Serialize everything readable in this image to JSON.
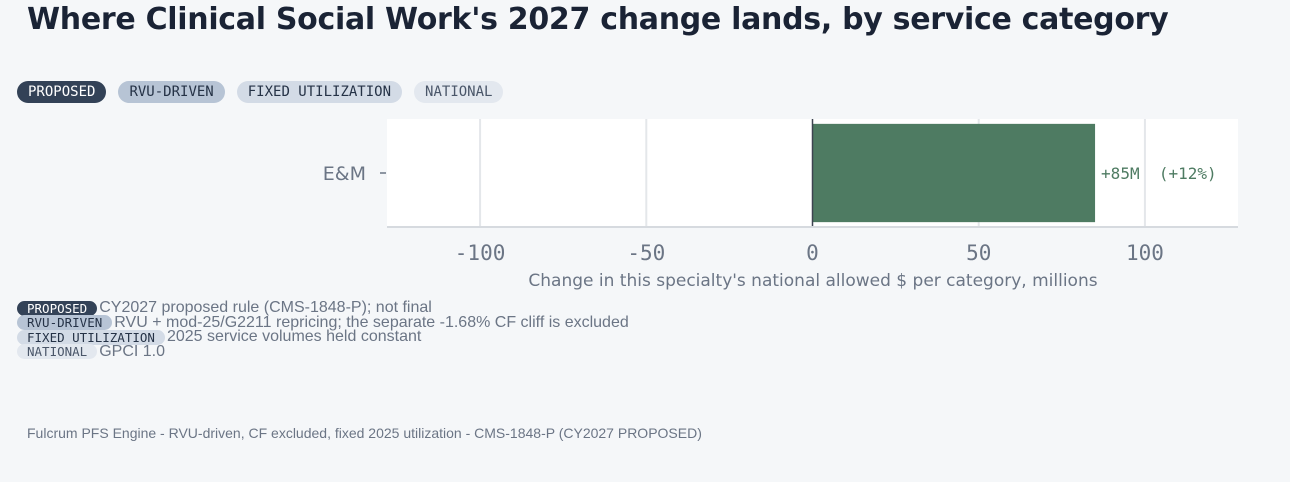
{
  "title": "Where Clinical Social Work's 2027 change lands, by service category",
  "badges": [
    "PROPOSED",
    "RVU-DRIVEN",
    "FIXED UTILIZATION",
    "NATIONAL"
  ],
  "legend": [
    {
      "badge": "PROPOSED",
      "text": "CY2027 proposed rule (CMS-1848-P); not final"
    },
    {
      "badge": "RVU-DRIVEN",
      "text": "RVU + mod-25/G2211 repricing; the separate -1.68% CF cliff is excluded"
    },
    {
      "badge": "FIXED UTILIZATION",
      "text": "2025 service volumes held constant"
    },
    {
      "badge": "NATIONAL",
      "text": "GPCI 1.0"
    }
  ],
  "footer": "Fulcrum PFS Engine - RVU-driven, CF excluded, fixed 2025 utilization - CMS-1848-P (CY2027 PROPOSED)",
  "colors": {
    "bar": "#4e7b62",
    "bar_label": "#4e7b62",
    "axis_text": "#6b7585"
  },
  "chart_data": {
    "type": "bar",
    "orientation": "horizontal",
    "categories": [
      "E&M"
    ],
    "values": [
      85
    ],
    "bar_labels": [
      "+85M  (+12%)"
    ],
    "xlabel": "Change in this specialty's national allowed $ per category, millions",
    "ylabel": "",
    "xlim": [
      -128,
      128
    ],
    "xticks": [
      -100,
      -50,
      0,
      50,
      100
    ],
    "grid": true
  }
}
